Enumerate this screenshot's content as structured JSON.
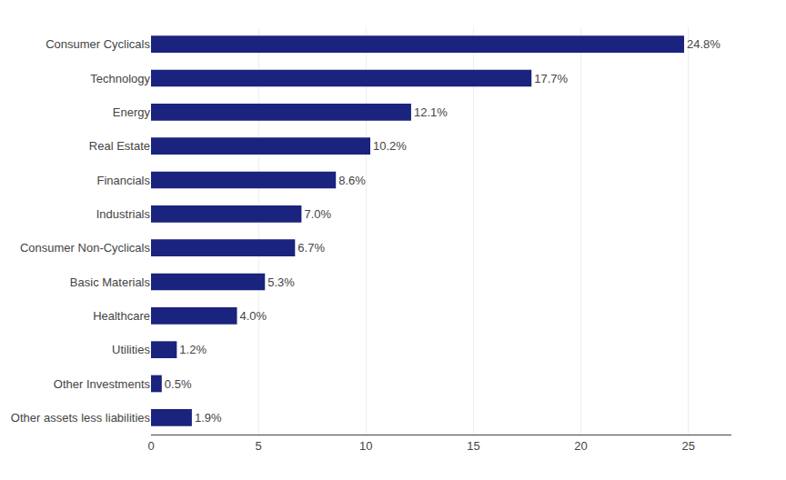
{
  "chart_data": {
    "type": "bar",
    "orientation": "horizontal",
    "categories": [
      "Consumer Cyclicals",
      "Technology",
      "Energy",
      "Real Estate",
      "Financials",
      "Industrials",
      "Consumer Non-Cyclicals",
      "Basic Materials",
      "Healthcare",
      "Utilities",
      "Other Investments",
      "Other assets less liabilities"
    ],
    "values": [
      24.8,
      17.7,
      12.1,
      10.2,
      8.6,
      7.0,
      6.7,
      5.3,
      4.0,
      1.2,
      0.5,
      1.9
    ],
    "value_labels": [
      "24.8%",
      "17.7%",
      "12.1%",
      "10.2%",
      "8.6%",
      "7.0%",
      "6.7%",
      "5.3%",
      "4.0%",
      "1.2%",
      "0.5%",
      "1.9%"
    ],
    "color": "#1a237e",
    "xlim": [
      0,
      27
    ],
    "xticks": [
      0,
      5,
      10,
      15,
      20,
      25
    ],
    "grid": true,
    "data_labels": true
  }
}
